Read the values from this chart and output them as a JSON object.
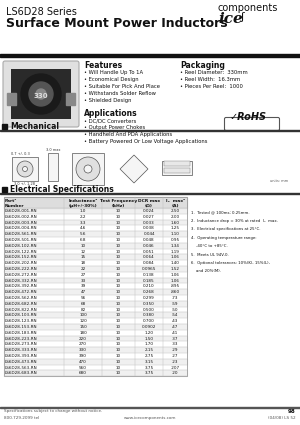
{
  "title_series": "LS6D28 Series",
  "title_main": "Surface Mount Power Inductors",
  "company_ice": "ice",
  "company_rest": "components",
  "features_title": "Features",
  "features": [
    "Will Handle Up To 1A",
    "Economical Design",
    "Suitable For Pick And Place",
    "Withstands Solder Reflow",
    "Shielded Design"
  ],
  "applications_title": "Applications",
  "applications": [
    "DC/DC Converters",
    "Output Power Chokes",
    "Handheld And PDA Applications",
    "Battery Powered Or Low Voltage Applications"
  ],
  "packaging_title": "Packaging",
  "packaging": [
    "Reel Diameter:  330mm",
    "Reel Width:  16.3mm",
    "Pieces Per Reel:  1000"
  ],
  "mechanical_title": "Mechanical",
  "elec_title": "Electrical Specifications",
  "table_headers_line1": [
    "Part¹",
    "Inductance²",
    "Test Frequency",
    "DCR max",
    "Iₒ  max²"
  ],
  "table_headers_line2": [
    "Number",
    "(μH+/-30%)",
    "(kHz)",
    "(Ω)",
    "(A)"
  ],
  "table_data": [
    [
      "LS6D28-001-RN",
      "1.0",
      "10",
      "0.024",
      "2.50"
    ],
    [
      "LS6D28-002-RN",
      "2.2",
      "10",
      "0.027",
      "2.00"
    ],
    [
      "LS6D28-003-RN",
      "3.3",
      "10",
      "0.033",
      "1.60"
    ],
    [
      "LS6D28-004-RN",
      "4.6",
      "10",
      "0.038",
      "1.25"
    ],
    [
      "LS6D28-561-RN",
      "5.6",
      "10",
      "0.044",
      "1.10"
    ],
    [
      "LS6D28-501-RN",
      "6.8",
      "10",
      "0.048",
      "0.95"
    ],
    [
      "LS6D28-102-RN",
      "10",
      "10",
      "0.046",
      "1.34"
    ],
    [
      "LS6D28-122-RN",
      "12",
      "10",
      "0.051",
      "1.19"
    ],
    [
      "LS6D28-152-RN",
      "15",
      "10",
      "0.064",
      "1.06"
    ],
    [
      "LS6D28-202-RN",
      "18",
      "10",
      "0.084",
      "1.40"
    ],
    [
      "LS6D28-222-RN",
      "22",
      "10",
      "0.0965",
      "1.52"
    ],
    [
      "LS6D28-272-RN",
      "27",
      "10",
      "0.138",
      "1.06"
    ],
    [
      "LS6D28-332-RN",
      "33",
      "10",
      "0.185",
      "1.06"
    ],
    [
      "LS6D28-392-RN",
      "39",
      "10",
      "0.210",
      ".895"
    ],
    [
      "LS6D28-472-RN",
      "47",
      "10",
      "0.268",
      ".860"
    ],
    [
      "LS6D28-562-RN",
      "56",
      "10",
      "0.299",
      ".73"
    ],
    [
      "LS6D28-682-RN",
      "68",
      "10",
      "0.350",
      ".59"
    ],
    [
      "LS6D28-822-RN",
      "82",
      "10",
      "0.500",
      ".50"
    ],
    [
      "LS6D28-103-RN",
      "100",
      "10",
      "0.380",
      ".54"
    ],
    [
      "LS6D28-123-RN",
      "120",
      "10",
      "0.700",
      ".43"
    ],
    [
      "LS6D28-153-RN",
      "150",
      "10",
      "0.0902",
      ".47"
    ],
    [
      "LS6D28-183-RN",
      "180",
      "10",
      "1.20",
      ".41"
    ],
    [
      "LS6D28-223-RN",
      "220",
      "10",
      "1.50",
      ".37"
    ],
    [
      "LS6D28-273-RN",
      "270",
      "10",
      "1.70",
      ".33"
    ],
    [
      "LS6D28-333-RN",
      "330",
      "10",
      "2.15",
      ".29"
    ],
    [
      "LS6D28-393-RN",
      "390",
      "10",
      "2.75",
      ".27"
    ],
    [
      "LS6D28-473-RN",
      "470",
      "10",
      "3.15",
      ".23"
    ],
    [
      "LS6D28-563-RN",
      "560",
      "10",
      "3.75",
      ".207"
    ],
    [
      "LS6D28-683-RN",
      "680",
      "10",
      "3.75",
      ".20"
    ]
  ],
  "footnotes": [
    "1.  Tested @ 100ms; 0.25mm.",
    "2.  Inductance drop = 30% at rated  Iₒ  max.",
    "3.  Electrical specifications at 25°C.",
    "4.  Operating temperature range:",
    "    -40°C to +85°C.",
    "5.  Meets UL 94V-0.",
    "6.  Optional tolerances: 10%(K), 15%(L),",
    "    and 20%(M)."
  ],
  "footer_note": "Specifications subject to change without notice.",
  "footer_phone": "800.729.2099 tel",
  "footer_web": "www.icecomponents.com",
  "footer_right": "(04/08) LS 52",
  "page_number": "98",
  "bg_color": "#ffffff"
}
